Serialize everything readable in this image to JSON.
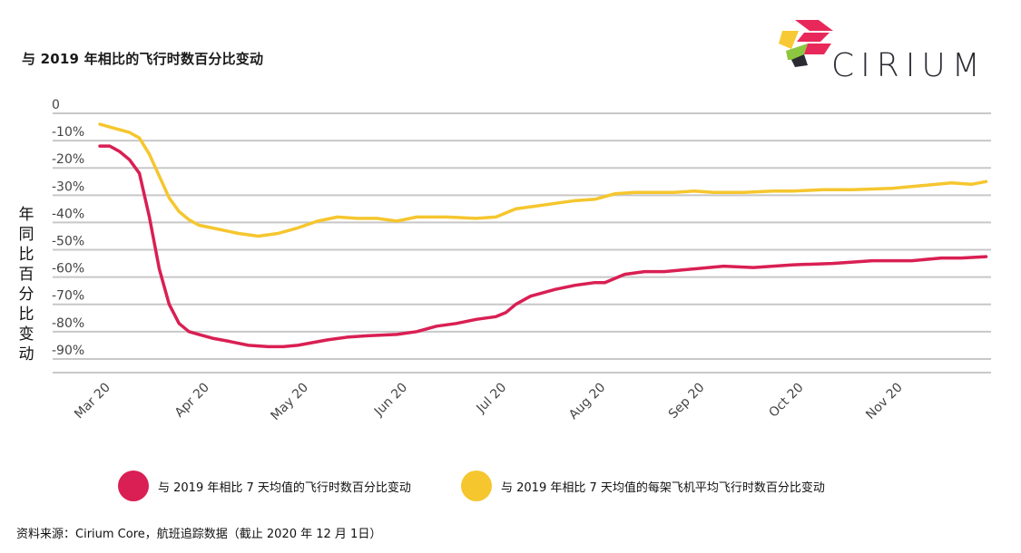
{
  "page": {
    "title": "与 2019 年相比的飞行时数百分比变动",
    "y_axis_label_chars": [
      "年",
      "同",
      "比",
      "百",
      "分",
      "比",
      "变",
      "动"
    ],
    "source": "资料来源：Cirium Core，航班追踪数据（截止 2020 年 12 月 1日）"
  },
  "logo": {
    "text": "CIRIUM",
    "colors": [
      "#e8285a",
      "#f7c934",
      "#8dc63f",
      "#2b2b33"
    ]
  },
  "legend": [
    {
      "label": "与 2019 年相比 7 天均值的飞行时数百分比变动",
      "color": "#d91f53"
    },
    {
      "label": "与 2019 年相比 7 天均值的每架飞机平均飞行时数百分比变动",
      "color": "#f5c62e"
    }
  ],
  "chart_data": {
    "type": "line",
    "title": "与 2019 年相比的飞行时数百分比变动",
    "ylabel": "年同比百分比变动",
    "xlabel": "",
    "ylim": [
      -95,
      0
    ],
    "xlim": [
      0,
      9
    ],
    "y_ticks": [
      0,
      -10,
      -20,
      -30,
      -40,
      -50,
      -60,
      -70,
      -80,
      -90
    ],
    "y_tick_labels": [
      "0",
      "-10%",
      "-20%",
      "-30%",
      "-40%",
      "-50%",
      "-60%",
      "-70%",
      "-80%",
      "-90%"
    ],
    "x_ticks": [
      0,
      1,
      2,
      3,
      4,
      5,
      6,
      7,
      8
    ],
    "x_tick_labels": [
      "Mar 20",
      "Apr 20",
      "May 20",
      "Jun 20",
      "Jul 20",
      "Aug 20",
      "Sep 20",
      "Oct 20",
      "Nov 20"
    ],
    "grid": true,
    "legend_position": "bottom",
    "series": [
      {
        "name": "与 2019 年相比 7 天均值的飞行时数百分比变动",
        "color": "#d91f53",
        "x": [
          0,
          0.1,
          0.2,
          0.3,
          0.4,
          0.5,
          0.6,
          0.7,
          0.8,
          0.9,
          1.0,
          1.15,
          1.3,
          1.5,
          1.7,
          1.85,
          2.0,
          2.15,
          2.3,
          2.5,
          2.7,
          3.0,
          3.2,
          3.4,
          3.6,
          3.8,
          4.0,
          4.1,
          4.2,
          4.35,
          4.5,
          4.6,
          4.8,
          5.0,
          5.1,
          5.3,
          5.5,
          5.7,
          6.0,
          6.3,
          6.6,
          7.0,
          7.4,
          7.8,
          8.2,
          8.5,
          8.7,
          8.95
        ],
        "y": [
          -12,
          -12,
          -14,
          -17,
          -22,
          -38,
          -57,
          -70,
          -77,
          -80,
          -81,
          -82.5,
          -83.5,
          -85,
          -85.5,
          -85.5,
          -85,
          -84,
          -83,
          -82,
          -81.5,
          -81,
          -80,
          -78,
          -77,
          -75.5,
          -74.5,
          -73,
          -70,
          -67,
          -65.5,
          -64.5,
          -63,
          -62,
          -62,
          -59,
          -58,
          -58,
          -57,
          -56,
          -56.5,
          -55.5,
          -55,
          -54,
          -54,
          -53,
          -53,
          -52.5
        ]
      },
      {
        "name": "与 2019 年相比 7 天均值的每架飞机平均飞行时数百分比变动",
        "color": "#f5c62e",
        "x": [
          0,
          0.1,
          0.2,
          0.3,
          0.4,
          0.5,
          0.6,
          0.7,
          0.8,
          0.9,
          1.0,
          1.2,
          1.4,
          1.6,
          1.8,
          2.0,
          2.2,
          2.4,
          2.6,
          2.8,
          3.0,
          3.2,
          3.5,
          3.8,
          4.0,
          4.2,
          4.4,
          4.6,
          4.8,
          5.0,
          5.2,
          5.4,
          5.6,
          5.8,
          6.0,
          6.2,
          6.5,
          6.8,
          7.0,
          7.3,
          7.6,
          8.0,
          8.3,
          8.6,
          8.8,
          8.95
        ],
        "y": [
          -4,
          -5,
          -6,
          -7,
          -9,
          -15,
          -23,
          -31,
          -36,
          -39,
          -41,
          -42.5,
          -44,
          -45,
          -44,
          -42,
          -39.5,
          -38,
          -38.5,
          -38.5,
          -39.5,
          -38,
          -38,
          -38.5,
          -38,
          -35,
          -34,
          -33,
          -32,
          -31.5,
          -29.5,
          -29,
          -29,
          -29,
          -28.5,
          -29,
          -29,
          -28.5,
          -28.5,
          -28,
          -28,
          -27.5,
          -26.5,
          -25.5,
          -26,
          -25
        ]
      }
    ]
  }
}
